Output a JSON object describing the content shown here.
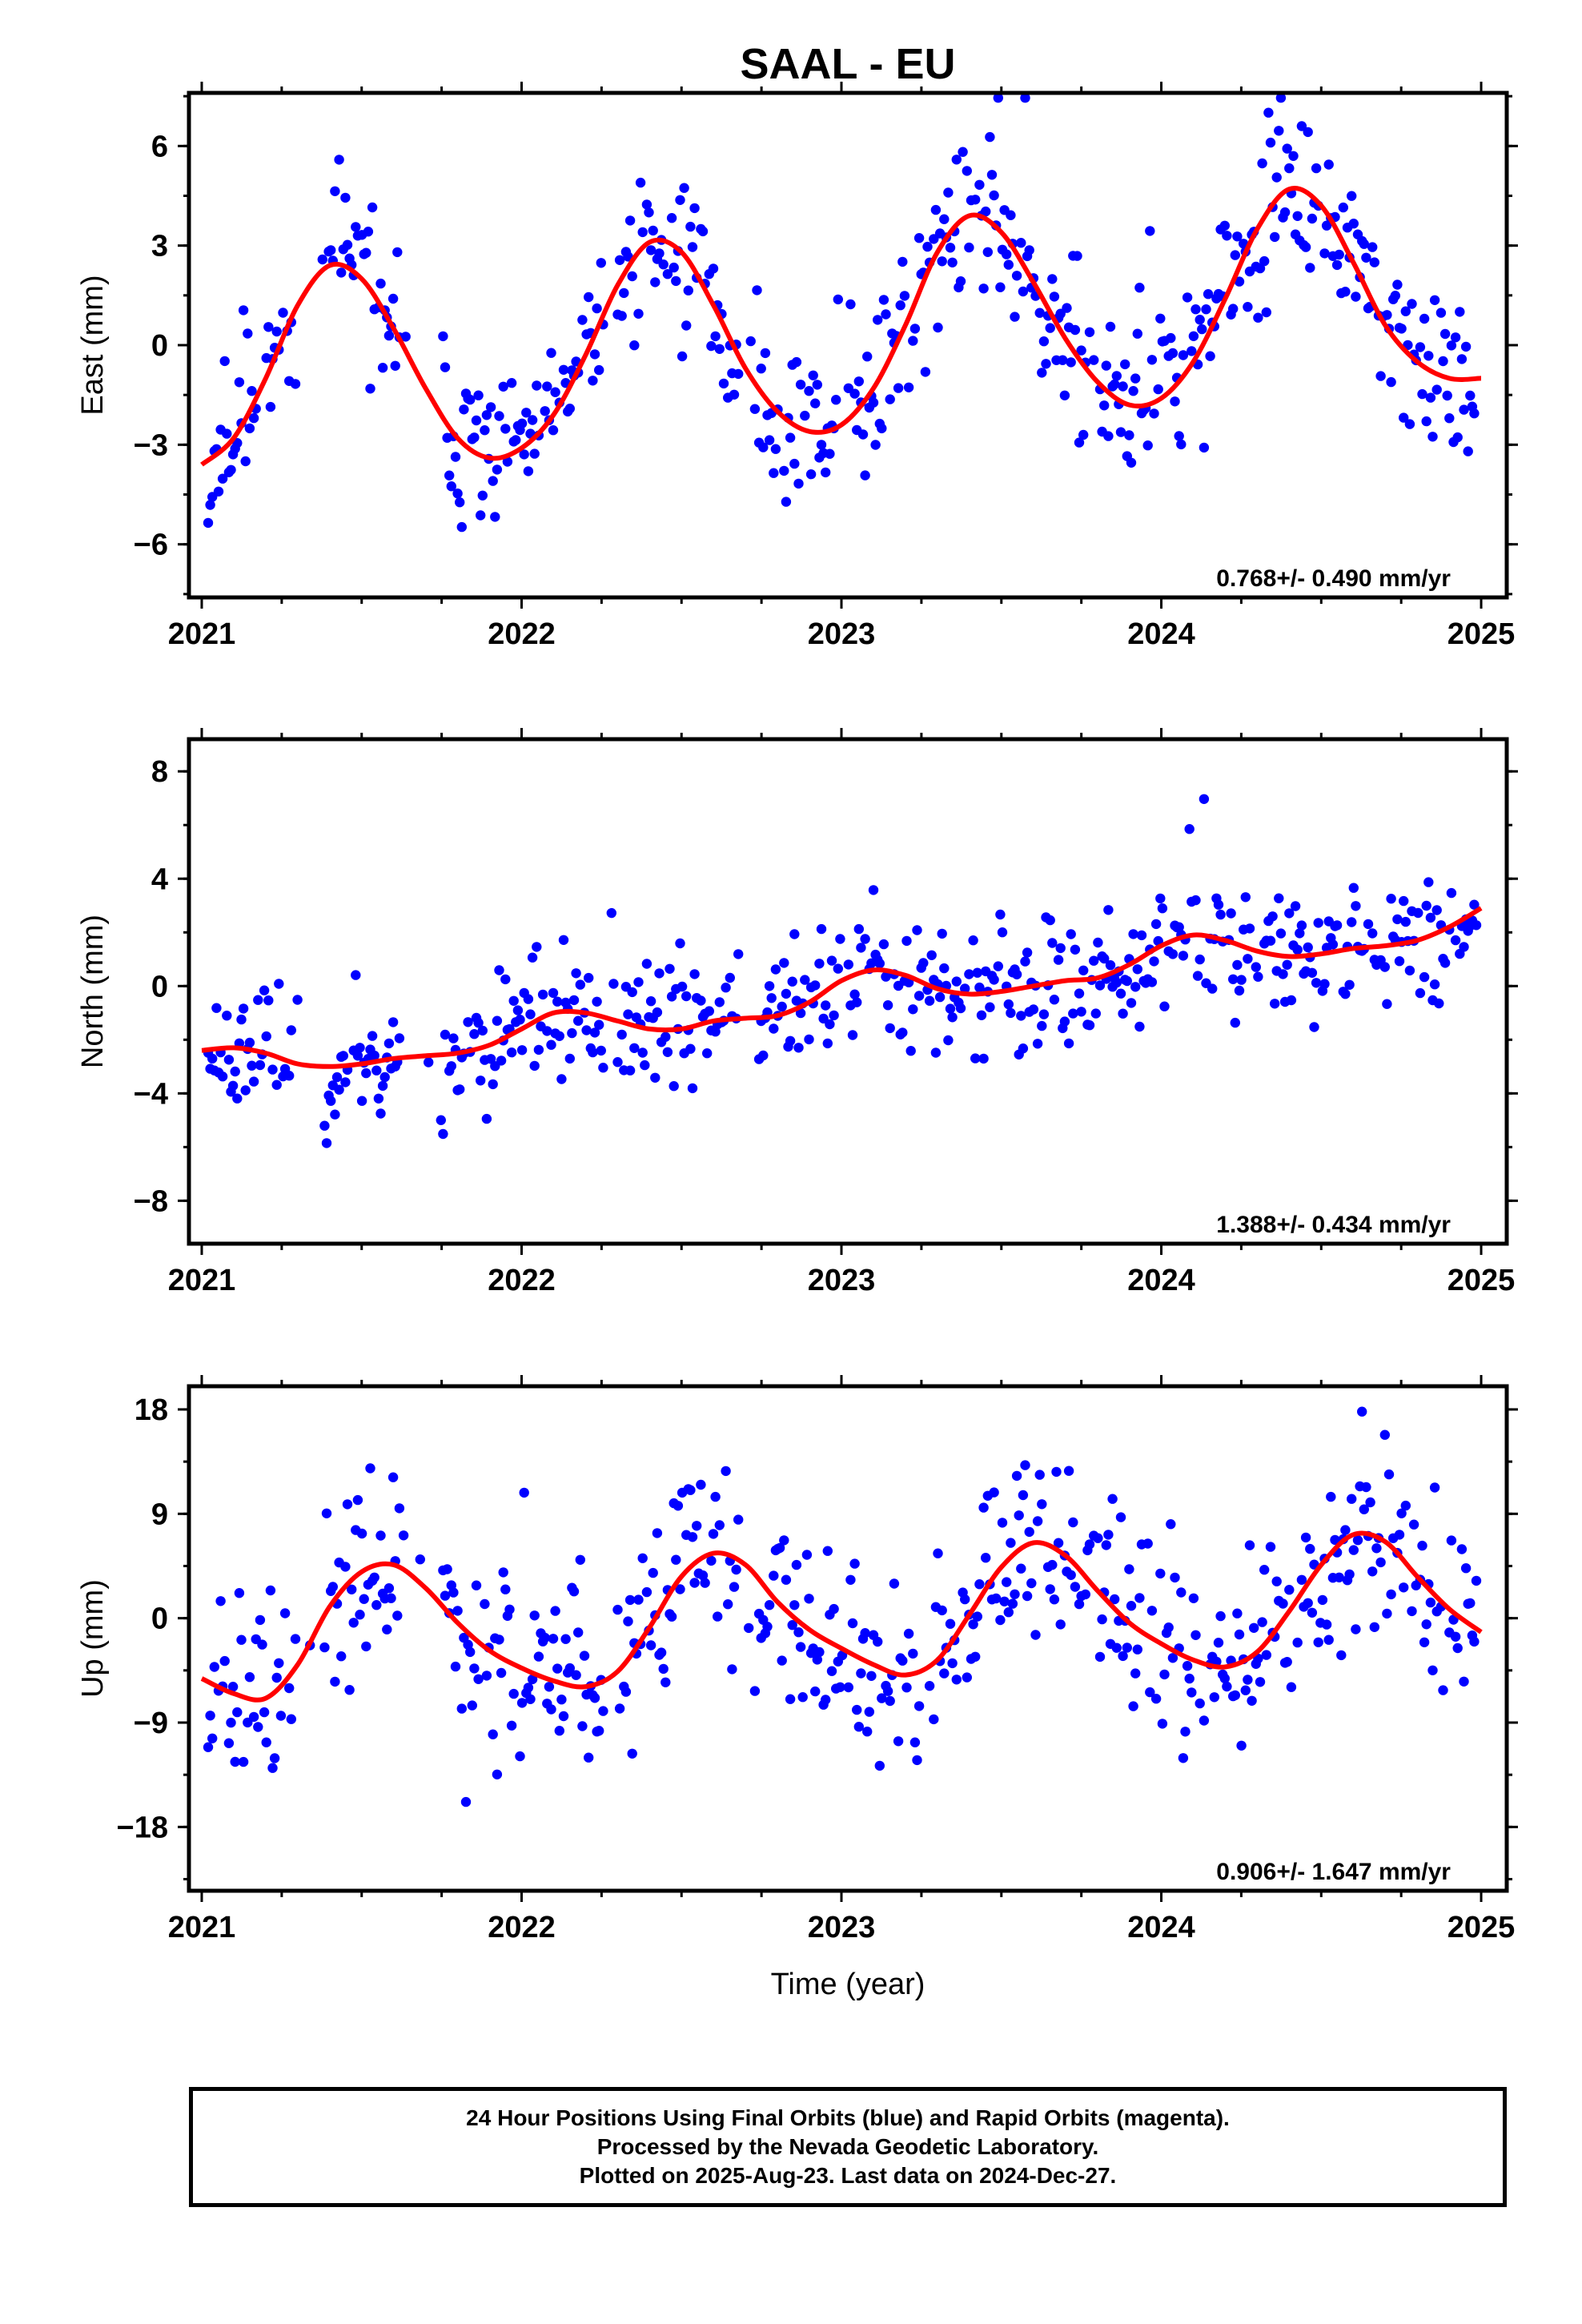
{
  "chart_data": {
    "type": "scatter",
    "title": "SAAL - EU",
    "xlabel": "Time (year)",
    "xlim": [
      2020.96,
      2025.08
    ],
    "xticks": [
      2021,
      2022,
      2023,
      2024,
      2025
    ],
    "point_color": "#0000ff",
    "fit_color": "#ff0000",
    "panels": [
      {
        "ylabel": "East (mm)",
        "ylim": [
          -7.6,
          7.6
        ],
        "yticks": [
          -6,
          -3,
          0,
          3,
          6
        ],
        "rate": "0.768+/- 0.490 mm/yr",
        "fit": [
          [
            2021.0,
            -3.6
          ],
          [
            2021.1,
            -2.8
          ],
          [
            2021.2,
            -1.0
          ],
          [
            2021.3,
            1.2
          ],
          [
            2021.4,
            2.4
          ],
          [
            2021.5,
            2.0
          ],
          [
            2021.6,
            0.5
          ],
          [
            2021.7,
            -1.3
          ],
          [
            2021.8,
            -2.8
          ],
          [
            2021.9,
            -3.4
          ],
          [
            2022.0,
            -3.1
          ],
          [
            2022.1,
            -2.1
          ],
          [
            2022.2,
            -0.3
          ],
          [
            2022.3,
            1.8
          ],
          [
            2022.4,
            3.1
          ],
          [
            2022.5,
            2.8
          ],
          [
            2022.6,
            1.2
          ],
          [
            2022.7,
            -0.7
          ],
          [
            2022.8,
            -2.0
          ],
          [
            2022.9,
            -2.6
          ],
          [
            2023.0,
            -2.4
          ],
          [
            2023.1,
            -1.3
          ],
          [
            2023.2,
            0.6
          ],
          [
            2023.3,
            2.8
          ],
          [
            2023.4,
            3.9
          ],
          [
            2023.5,
            3.4
          ],
          [
            2023.6,
            1.9
          ],
          [
            2023.7,
            0.2
          ],
          [
            2023.8,
            -1.1
          ],
          [
            2023.9,
            -1.8
          ],
          [
            2024.0,
            -1.6
          ],
          [
            2024.1,
            -0.5
          ],
          [
            2024.2,
            1.4
          ],
          [
            2024.3,
            3.5
          ],
          [
            2024.4,
            4.7
          ],
          [
            2024.5,
            4.2
          ],
          [
            2024.6,
            2.5
          ],
          [
            2024.7,
            0.6
          ],
          [
            2024.8,
            -0.5
          ],
          [
            2024.9,
            -1.0
          ],
          [
            2025.0,
            -1.0
          ]
        ],
        "amp": 3.0,
        "phase": 2021.4,
        "trend0": -0.6,
        "slope": 0.768,
        "noise": 1.2,
        "seed": 11
      },
      {
        "ylabel": "North (mm)",
        "ylim": [
          -9.6,
          9.2
        ],
        "yticks": [
          -8,
          -4,
          0,
          4,
          8
        ],
        "rate": "1.388+/- 0.434 mm/yr",
        "fit": [
          [
            2021.0,
            -2.4
          ],
          [
            2021.1,
            -2.3
          ],
          [
            2021.2,
            -2.5
          ],
          [
            2021.3,
            -2.9
          ],
          [
            2021.4,
            -3.0
          ],
          [
            2021.5,
            -2.9
          ],
          [
            2021.6,
            -2.7
          ],
          [
            2021.7,
            -2.6
          ],
          [
            2021.8,
            -2.5
          ],
          [
            2021.9,
            -2.2
          ],
          [
            2022.0,
            -1.6
          ],
          [
            2022.1,
            -1.0
          ],
          [
            2022.2,
            -1.0
          ],
          [
            2022.3,
            -1.3
          ],
          [
            2022.4,
            -1.6
          ],
          [
            2022.5,
            -1.6
          ],
          [
            2022.6,
            -1.3
          ],
          [
            2022.7,
            -1.2
          ],
          [
            2022.8,
            -1.1
          ],
          [
            2022.9,
            -0.6
          ],
          [
            2023.0,
            0.2
          ],
          [
            2023.1,
            0.6
          ],
          [
            2023.2,
            0.4
          ],
          [
            2023.3,
            -0.1
          ],
          [
            2023.4,
            -0.3
          ],
          [
            2023.5,
            -0.2
          ],
          [
            2023.6,
            0.0
          ],
          [
            2023.7,
            0.2
          ],
          [
            2023.8,
            0.3
          ],
          [
            2023.9,
            0.8
          ],
          [
            2024.0,
            1.5
          ],
          [
            2024.1,
            1.9
          ],
          [
            2024.2,
            1.7
          ],
          [
            2024.3,
            1.3
          ],
          [
            2024.4,
            1.1
          ],
          [
            2024.5,
            1.2
          ],
          [
            2024.6,
            1.4
          ],
          [
            2024.7,
            1.5
          ],
          [
            2024.8,
            1.7
          ],
          [
            2024.9,
            2.2
          ],
          [
            2025.0,
            2.9
          ]
        ],
        "amp": 0.6,
        "phase": 2021.1,
        "trend0": -2.6,
        "slope": 1.388,
        "noise": 1.1,
        "seed": 23
      },
      {
        "ylabel": "Up (mm)",
        "ylim": [
          -23.5,
          20
        ],
        "yticks": [
          -18,
          -9,
          0,
          9,
          18
        ],
        "rate": "0.906+/- 1.647 mm/yr",
        "fit": [
          [
            2021.0,
            -5.2
          ],
          [
            2021.1,
            -6.5
          ],
          [
            2021.2,
            -6.9
          ],
          [
            2021.3,
            -4.0
          ],
          [
            2021.4,
            1.0
          ],
          [
            2021.5,
            4.0
          ],
          [
            2021.6,
            4.6
          ],
          [
            2021.7,
            2.6
          ],
          [
            2021.8,
            -0.4
          ],
          [
            2021.9,
            -2.8
          ],
          [
            2022.0,
            -4.3
          ],
          [
            2022.1,
            -5.4
          ],
          [
            2022.2,
            -5.9
          ],
          [
            2022.3,
            -4.6
          ],
          [
            2022.4,
            -0.8
          ],
          [
            2022.5,
            3.6
          ],
          [
            2022.6,
            5.6
          ],
          [
            2022.7,
            4.6
          ],
          [
            2022.8,
            1.4
          ],
          [
            2022.9,
            -1.0
          ],
          [
            2023.0,
            -2.6
          ],
          [
            2023.1,
            -4.0
          ],
          [
            2023.2,
            -4.9
          ],
          [
            2023.3,
            -3.6
          ],
          [
            2023.4,
            0.3
          ],
          [
            2023.5,
            4.4
          ],
          [
            2023.6,
            6.5
          ],
          [
            2023.7,
            5.4
          ],
          [
            2023.8,
            2.4
          ],
          [
            2023.9,
            -0.4
          ],
          [
            2024.0,
            -2.2
          ],
          [
            2024.1,
            -3.6
          ],
          [
            2024.2,
            -4.2
          ],
          [
            2024.3,
            -2.9
          ],
          [
            2024.4,
            0.6
          ],
          [
            2024.5,
            4.6
          ],
          [
            2024.6,
            7.2
          ],
          [
            2024.7,
            6.6
          ],
          [
            2024.8,
            3.6
          ],
          [
            2024.9,
            0.8
          ],
          [
            2025.0,
            -1.2
          ]
        ],
        "amp": 5.5,
        "phase": 2021.6,
        "trend0": -1.0,
        "slope": 0.906,
        "noise": 4.2,
        "seed": 37
      }
    ]
  },
  "footer": {
    "line1": "24 Hour Positions Using Final Orbits (blue) and Rapid Orbits (magenta).",
    "line2": "Processed by the Nevada Geodetic Laboratory.",
    "line3": "Plotted on 2025-Aug-23. Last data on 2024-Dec-27."
  }
}
